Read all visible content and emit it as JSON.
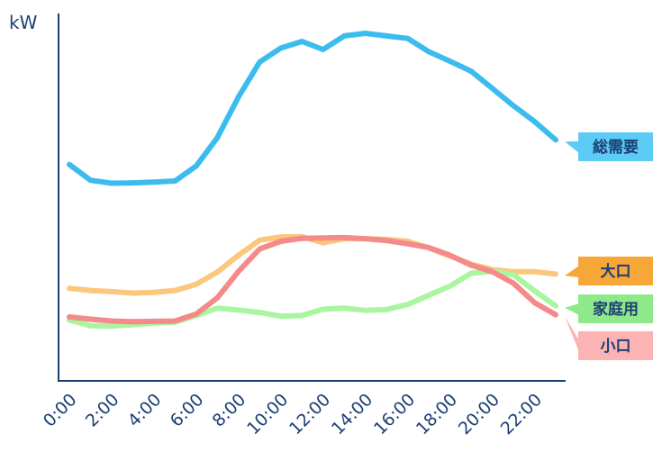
{
  "chart_data": {
    "type": "line",
    "ylabel": "kW",
    "xlabel": "",
    "x_ticks": [
      "0:00",
      "2:00",
      "4:00",
      "6:00",
      "8:00",
      "10:00",
      "12:00",
      "14:00",
      "16:00",
      "18:00",
      "20:00",
      "22:00"
    ],
    "xlim": [
      0,
      23
    ],
    "ylim": [
      0,
      100
    ],
    "grid": false,
    "legend": "right-side labels",
    "series": [
      {
        "name": "総需要",
        "color": "#3cbcee",
        "label_bg": "#5ccbf5",
        "label_color": "#1c3f73",
        "x": [
          0,
          1,
          2,
          3,
          4,
          5,
          6,
          7,
          8,
          9,
          10,
          11,
          12,
          13,
          14,
          15,
          16,
          17,
          18,
          19,
          20,
          21,
          22,
          23
        ],
        "values": [
          58.9,
          54.6,
          53.8,
          53.9,
          54.1,
          54.4,
          58.5,
          66.2,
          77.3,
          86.8,
          90.6,
          92.4,
          90.2,
          93.9,
          94.6,
          93.9,
          93.2,
          89.6,
          87,
          84.3,
          79.6,
          74.9,
          70.6,
          65.6
        ]
      },
      {
        "name": "大口",
        "color": "#fbc77d",
        "label_bg": "#f7a638",
        "label_color": "#1c3f73",
        "x": [
          0,
          1,
          2,
          3,
          4,
          5,
          6,
          7,
          8,
          9,
          10,
          11,
          12,
          13,
          14,
          15,
          16,
          17,
          18,
          19,
          20,
          21,
          22,
          23
        ],
        "values": [
          25.2,
          24.6,
          24.3,
          23.9,
          24.1,
          24.6,
          26.3,
          29.6,
          34.2,
          38.3,
          39.2,
          39.3,
          37.6,
          38.7,
          38.7,
          38.5,
          38,
          36.2,
          34,
          31.8,
          30.3,
          29.7,
          29.7,
          29.1
        ]
      },
      {
        "name": "家庭用",
        "color": "#a9f5a0",
        "label_bg": "#8ee98a",
        "label_color": "#1c3f73",
        "x": [
          0,
          1,
          2,
          3,
          4,
          5,
          6,
          7,
          8,
          9,
          10,
          11,
          12,
          13,
          14,
          15,
          16,
          17,
          18,
          19,
          20,
          21,
          22,
          23
        ],
        "values": [
          16.6,
          15,
          14.9,
          15.3,
          15.7,
          16,
          17.8,
          19.8,
          19.3,
          18.6,
          17.6,
          17.8,
          19.5,
          19.8,
          19.2,
          19.4,
          20.8,
          23.3,
          25.8,
          29.3,
          29.8,
          28.9,
          24.5,
          20.4
        ]
      },
      {
        "name": "小口",
        "color": "#f58a8a",
        "label_bg": "#fbb3b3",
        "label_color": "#1c3f73",
        "x": [
          0,
          1,
          2,
          3,
          4,
          5,
          6,
          7,
          8,
          9,
          10,
          11,
          12,
          13,
          14,
          15,
          16,
          17,
          18,
          19,
          20,
          21,
          22,
          23
        ],
        "values": [
          17.4,
          16.8,
          16.3,
          16.1,
          16.2,
          16.3,
          18.2,
          22.6,
          29.8,
          35.9,
          38,
          38.8,
          38.9,
          39,
          38.7,
          38.2,
          37.3,
          36.3,
          34.2,
          31.5,
          29.7,
          26.6,
          21.3,
          18
        ]
      }
    ]
  }
}
